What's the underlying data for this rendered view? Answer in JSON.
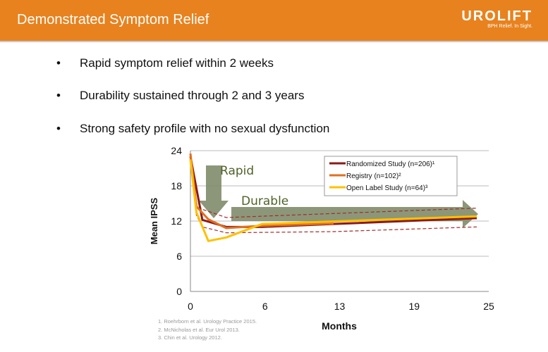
{
  "header": {
    "title": "Demonstrated Symptom Relief",
    "logo": "UROLIFT",
    "tagline": "BPH Relief. In Sight."
  },
  "bullets": [
    "Rapid symptom relief within 2 weeks",
    "Durability sustained through 2 and 3 years",
    "Strong safety profile with no sexual dysfunction"
  ],
  "footnotes": [
    "1. Roehrborn et al. Urology Practice 2015.",
    "2. McNicholas et al. Eur Urol 2013.",
    "3. Chin et al. Urology 2012."
  ],
  "colors": {
    "header": "#E8821E",
    "randomized": "#8B1A1A",
    "registry": "#E07020",
    "open_label": "#FFC000",
    "arrow": "#7F8C6A",
    "annotation_text": "#4F6228"
  },
  "chart_data": {
    "type": "line",
    "xlabel": "Months",
    "ylabel": "Mean IPSS",
    "xlim": [
      0,
      25
    ],
    "ylim": [
      0,
      24
    ],
    "x_ticks": [
      "0",
      "6",
      "13",
      "19",
      "25"
    ],
    "y_ticks": [
      "0",
      "6",
      "12",
      "18",
      "24"
    ],
    "grid": "horizontal",
    "legend_position": "top-right",
    "annotations": [
      "Rapid",
      "Durable"
    ],
    "series": [
      {
        "name": "Randomized Study (n=206)¹",
        "color": "#8B1A1A",
        "x": [
          0,
          1,
          3,
          6,
          12,
          24
        ],
        "y": [
          23,
          12.2,
          11,
          11,
          11.5,
          12.5
        ]
      },
      {
        "name": "Registry (n=102)²",
        "color": "#E07020",
        "x": [
          0,
          0.5,
          1.5,
          3,
          6,
          12
        ],
        "y": [
          23.5,
          14.5,
          12.3,
          10.8,
          11.2,
          11.6
        ]
      },
      {
        "name": "Open Label Study (n=64)³",
        "color": "#FFC000",
        "x": [
          0,
          0.5,
          1.5,
          3,
          6,
          24
        ],
        "y": [
          22.5,
          13.5,
          8.6,
          9.2,
          11.5,
          12.8
        ]
      }
    ],
    "confidence_band": {
      "color": "#A52A2A",
      "upper": {
        "x": [
          0,
          0.5,
          1,
          3,
          24
        ],
        "y": [
          23,
          15,
          14,
          12.6,
          14.2
        ]
      },
      "lower": {
        "x": [
          0,
          0.5,
          1,
          3,
          12,
          24
        ],
        "y": [
          23,
          13,
          11,
          10,
          10.2,
          11
        ]
      }
    }
  }
}
